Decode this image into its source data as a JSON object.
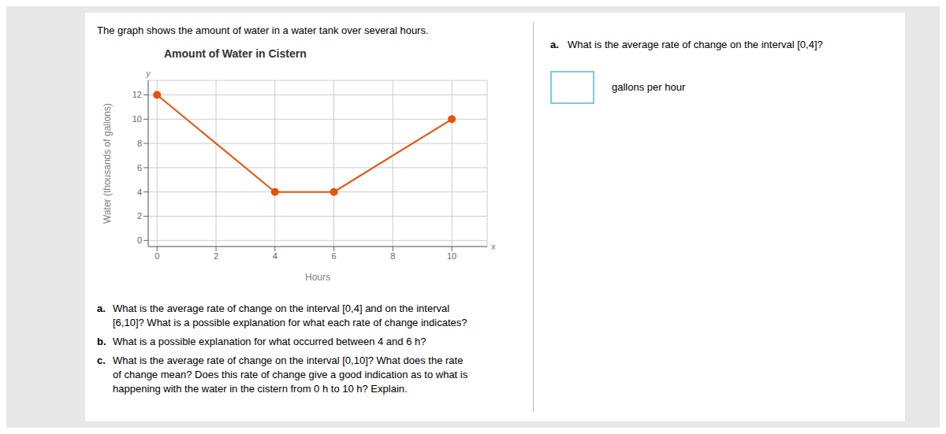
{
  "chart_data": {
    "type": "line",
    "title": "Amount of Water in Cistern",
    "xlabel": "Hours",
    "ylabel": "Water (thousands of gallons)",
    "x": [
      0,
      4,
      6,
      10
    ],
    "values": [
      12,
      4,
      4,
      10
    ],
    "color": "#E8520A",
    "marker": "circle",
    "xlim": [
      -0.3,
      11.2
    ],
    "ylim": [
      -0.5,
      13.2
    ],
    "xticks": [
      0,
      2,
      4,
      6,
      8,
      10
    ],
    "yticks": [
      0,
      2,
      4,
      6,
      8,
      10,
      12
    ],
    "grid": true,
    "annotations": [
      "The graph shows the amount of water in a water tank over several hours.",
      "x",
      "y",
      "a.",
      "What is the average rate of change on the interval [0,4]?",
      "gallons per hour",
      "a.",
      "What is the average rate of change on the interval [0,4] and on the interval\n[6,10]? What is a possible explanation for what each rate of change indicates?",
      "b.",
      "What is a possible explanation for what occurred between 4 and 6 h?",
      "c.",
      "What is the average rate of change on the interval [0,10]? What does the rate\nof change mean? Does this rate of change give a good indication as to what is\nhappening with the water in the cistern from 0 h to 10 h? Explain."
    ]
  }
}
